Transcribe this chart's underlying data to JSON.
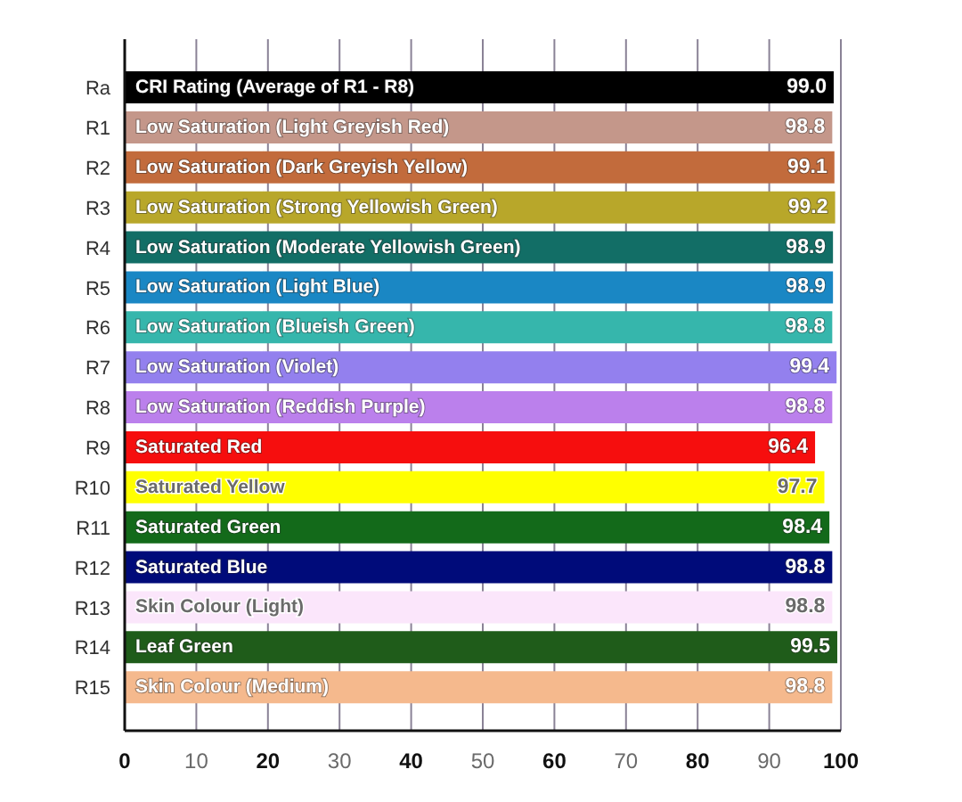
{
  "chart_data": {
    "type": "bar",
    "orientation": "horizontal",
    "categories": [
      "Ra",
      "R1",
      "R2",
      "R3",
      "R4",
      "R5",
      "R6",
      "R7",
      "R8",
      "R9",
      "R10",
      "R11",
      "R12",
      "R13",
      "R14",
      "R15"
    ],
    "values": [
      99.0,
      98.8,
      99.1,
      99.2,
      98.9,
      98.9,
      98.8,
      99.4,
      98.8,
      96.4,
      97.7,
      98.4,
      98.8,
      98.8,
      99.5,
      98.8
    ],
    "value_labels": [
      "99.0",
      "98.8",
      "99.1",
      "99.2",
      "98.9",
      "98.9",
      "98.8",
      "99.4",
      "98.8",
      "96.4",
      "97.7",
      "98.4",
      "98.8",
      "98.8",
      "99.5",
      "98.8"
    ],
    "colors": [
      "#000000",
      "#c4978a",
      "#c26b3c",
      "#b8a72a",
      "#126e66",
      "#1a87c4",
      "#36b6ac",
      "#9380ee",
      "#bb80ec",
      "#f60e0e",
      "#ffff00",
      "#136a1a",
      "#000b7a",
      "#fbe6fb",
      "#1f5c1a",
      "#f5b98d"
    ],
    "xlim": [
      0,
      100
    ],
    "xticks": [
      0,
      10,
      20,
      30,
      40,
      50,
      60,
      70,
      80,
      90,
      100
    ],
    "grid": "x",
    "annotations": [
      {
        "text": "CRI Rating (Average of R1 - R8)",
        "y": "Ra"
      },
      {
        "text": "Low Saturation (Light Greyish Red)",
        "y": "R1"
      },
      {
        "text": "Low Saturation (Dark Greyish Yellow)",
        "y": "R2"
      },
      {
        "text": "Low Saturation (Strong Yellowish Green)",
        "y": "R3"
      },
      {
        "text": "Low Saturation (Moderate Yellowish Green)",
        "y": "R4"
      },
      {
        "text": "Low Saturation (Light Blue)",
        "y": "R5"
      },
      {
        "text": "Low Saturation (Blueish Green)",
        "y": "R6"
      },
      {
        "text": "Low Saturation (Violet)",
        "y": "R7"
      },
      {
        "text": "Low Saturation (Reddish Purple)",
        "y": "R8"
      },
      {
        "text": "Saturated Red",
        "y": "R9"
      },
      {
        "text": "Saturated Yellow",
        "y": "R10"
      },
      {
        "text": "Saturated Green",
        "y": "R11"
      },
      {
        "text": "Saturated Blue",
        "y": "R12"
      },
      {
        "text": "Skin Colour (Light)",
        "y": "R13"
      },
      {
        "text": "Leaf Green",
        "y": "R14"
      },
      {
        "text": "Skin Colour (Medium)",
        "y": "R15"
      }
    ]
  }
}
